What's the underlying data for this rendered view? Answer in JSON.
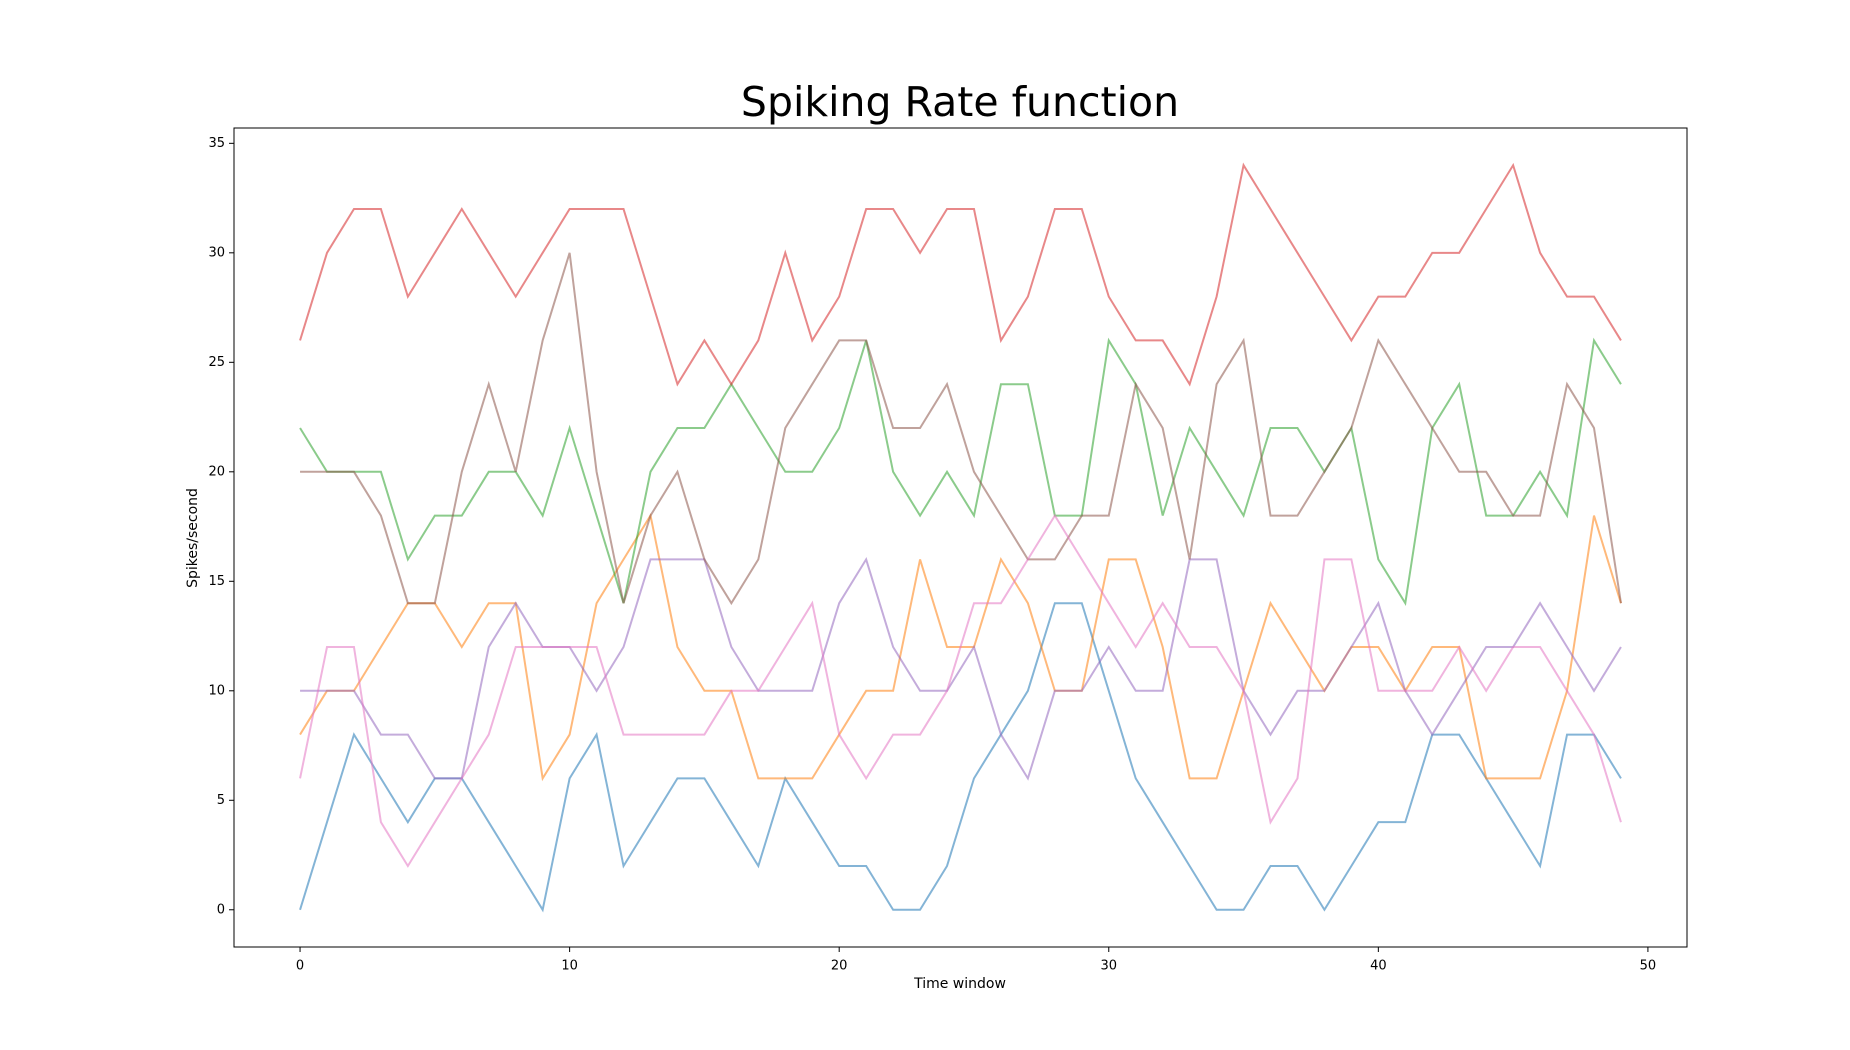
{
  "chart_data": {
    "type": "line",
    "title": "Spiking Rate function",
    "xlabel": "Time window",
    "ylabel": "Spikes/second",
    "x": [
      0,
      1,
      2,
      3,
      4,
      5,
      6,
      7,
      8,
      9,
      10,
      11,
      12,
      13,
      14,
      15,
      16,
      17,
      18,
      19,
      20,
      21,
      22,
      23,
      24,
      25,
      26,
      27,
      28,
      29,
      30,
      31,
      32,
      33,
      34,
      35,
      36,
      37,
      38,
      39,
      40,
      41,
      42,
      43,
      44,
      45,
      46,
      47,
      48,
      49
    ],
    "xlim": [
      -2.45,
      51.45
    ],
    "xticks": [
      0,
      10,
      20,
      30,
      40,
      50
    ],
    "ylim": [
      -1.7,
      35.7
    ],
    "yticks": [
      0,
      5,
      10,
      15,
      20,
      25,
      30,
      35
    ],
    "series": [
      {
        "color": "#1f77b4",
        "values": [
          0,
          4,
          8,
          6,
          4,
          6,
          6,
          4,
          2,
          0,
          6,
          8,
          2,
          4,
          6,
          6,
          4,
          2,
          6,
          4,
          2,
          2,
          0,
          0,
          2,
          6,
          8,
          10,
          14,
          14,
          10,
          6,
          4,
          2,
          0,
          0,
          2,
          2,
          0,
          2,
          4,
          4,
          8,
          8,
          6,
          4,
          2,
          8,
          8,
          6
        ]
      },
      {
        "color": "#ff7f0e",
        "values": [
          8,
          10,
          10,
          12,
          14,
          14,
          12,
          14,
          14,
          6,
          8,
          14,
          16,
          18,
          12,
          10,
          10,
          6,
          6,
          6,
          8,
          10,
          10,
          16,
          12,
          12,
          16,
          14,
          10,
          10,
          16,
          16,
          12,
          6,
          6,
          10,
          14,
          12,
          10,
          12,
          12,
          10,
          12,
          12,
          6,
          6,
          6,
          10,
          18,
          14
        ]
      },
      {
        "color": "#2ca02c",
        "values": [
          22,
          20,
          20,
          20,
          16,
          18,
          18,
          20,
          20,
          18,
          22,
          18,
          14,
          20,
          22,
          22,
          24,
          22,
          20,
          20,
          22,
          26,
          20,
          18,
          20,
          18,
          24,
          24,
          18,
          18,
          26,
          24,
          18,
          22,
          20,
          18,
          22,
          22,
          20,
          22,
          16,
          14,
          22,
          24,
          18,
          18,
          20,
          18,
          26,
          24
        ]
      },
      {
        "color": "#d62728",
        "values": [
          26,
          30,
          32,
          32,
          28,
          30,
          32,
          30,
          28,
          30,
          32,
          32,
          32,
          28,
          24,
          26,
          24,
          26,
          30,
          26,
          28,
          32,
          32,
          30,
          32,
          32,
          26,
          28,
          32,
          32,
          28,
          26,
          26,
          24,
          28,
          34,
          32,
          30,
          28,
          26,
          28,
          28,
          30,
          30,
          32,
          34,
          30,
          28,
          28,
          26
        ]
      },
      {
        "color": "#9467bd",
        "values": [
          10,
          10,
          10,
          8,
          8,
          6,
          6,
          12,
          14,
          12,
          12,
          10,
          12,
          16,
          16,
          16,
          12,
          10,
          10,
          10,
          14,
          16,
          12,
          10,
          10,
          12,
          8,
          6,
          10,
          10,
          12,
          10,
          10,
          16,
          16,
          10,
          8,
          10,
          10,
          12,
          14,
          10,
          8,
          10,
          12,
          12,
          14,
          12,
          10,
          12
        ]
      },
      {
        "color": "#8c564b",
        "values": [
          20,
          20,
          20,
          18,
          14,
          14,
          20,
          24,
          20,
          26,
          30,
          20,
          14,
          18,
          20,
          16,
          14,
          16,
          22,
          24,
          26,
          26,
          22,
          22,
          24,
          20,
          18,
          16,
          16,
          18,
          18,
          24,
          22,
          16,
          24,
          26,
          18,
          18,
          20,
          22,
          26,
          24,
          22,
          20,
          20,
          18,
          18,
          24,
          22,
          14
        ]
      },
      {
        "color": "#e377c2",
        "values": [
          6,
          12,
          12,
          4,
          2,
          4,
          6,
          8,
          12,
          12,
          12,
          12,
          8,
          8,
          8,
          8,
          10,
          10,
          12,
          14,
          8,
          6,
          8,
          8,
          10,
          14,
          14,
          16,
          18,
          16,
          14,
          12,
          14,
          12,
          12,
          10,
          4,
          6,
          16,
          16,
          10,
          10,
          10,
          12,
          10,
          12,
          12,
          10,
          8,
          4
        ]
      }
    ]
  }
}
